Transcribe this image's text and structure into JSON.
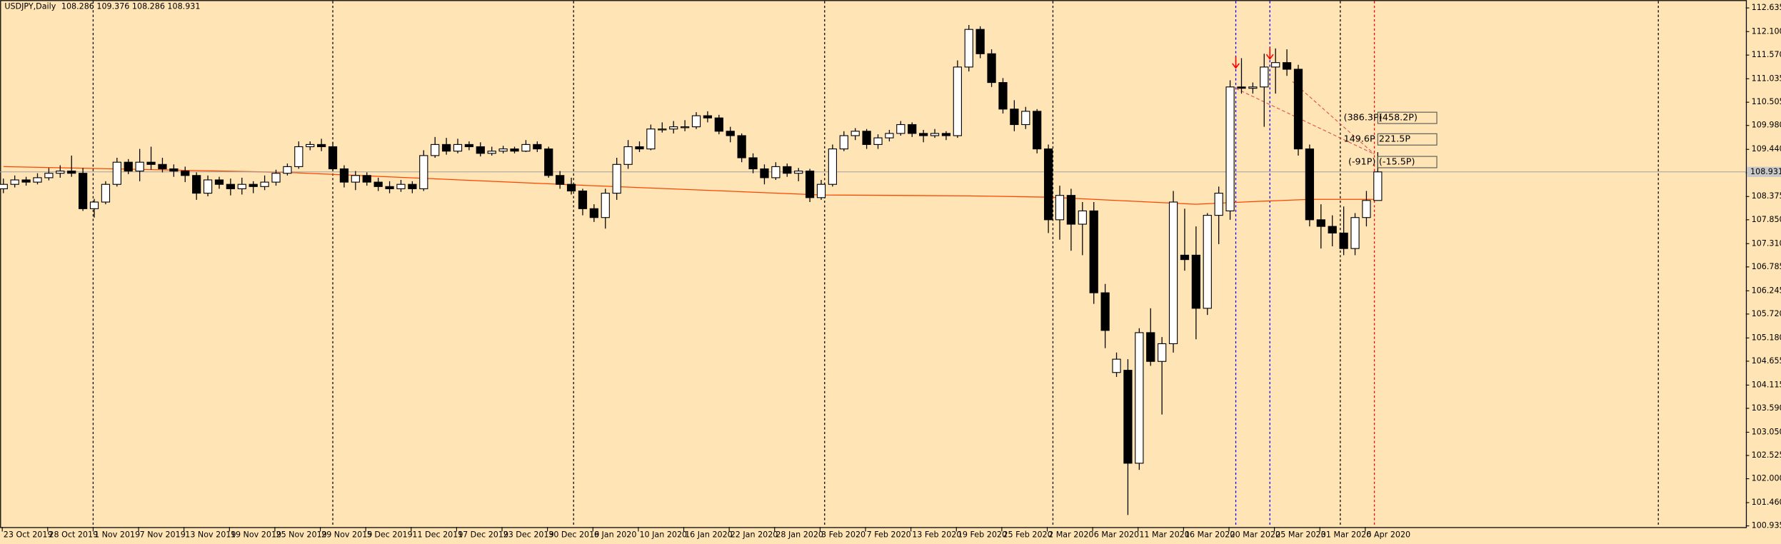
{
  "chart_data": {
    "type": "candlestick",
    "title": "USDJPY,Daily",
    "header_values": "108.286 109.376 108.286 108.931",
    "ylim": [
      100.935,
      112.635
    ],
    "yticks": [
      112.635,
      {
        "value": 112.1,
        "label": "112.100"
      },
      {
        "value": 111.57,
        "label": "111.570"
      },
      111.035,
      110.505,
      {
        "value": 109.98,
        "label": "109.980"
      },
      {
        "value": 109.44,
        "label": "109.440"
      },
      {
        "value": 108.91,
        "label": "108.910"
      },
      108.375,
      {
        "value": 107.85,
        "label": "107.850"
      },
      {
        "value": 107.31,
        "label": "107.310"
      },
      106.785,
      106.245,
      {
        "value": 105.72,
        "label": "105.720"
      },
      {
        "value": 105.18,
        "label": "105.180"
      },
      104.655,
      104.115,
      {
        "value": 103.59,
        "label": "103.590"
      },
      {
        "value": 103.05,
        "label": "103.050"
      },
      102.525,
      {
        "value": 102,
        "label": "102.000"
      },
      {
        "value": 101.46,
        "label": "101.460"
      },
      100.935
    ],
    "current_price": 108.931,
    "x_labels": [
      "23 Oct 2019",
      "28 Oct 2019",
      "1 Nov 2019",
      "7 Nov 2019",
      "13 Nov 2019",
      "19 Nov 2019",
      "25 Nov 2019",
      "29 Nov 2019",
      "5 Dec 2019",
      "11 Dec 2019",
      "17 Dec 2019",
      "23 Dec 2019",
      "30 Dec 2019",
      "6 Jan 2020",
      "10 Jan 2020",
      "16 Jan 2020",
      "22 Jan 2020",
      "28 Jan 2020",
      "3 Feb 2020",
      "7 Feb 2020",
      "13 Feb 2020",
      "19 Feb 2020",
      "25 Feb 2020",
      "2 Mar 2020",
      "6 Mar 2020",
      "11 Mar 2020",
      "16 Mar 2020",
      "20 Mar 2020",
      "25 Mar 2020",
      "31 Mar 2020",
      "6 Apr 2020"
    ],
    "candles": [
      [
        108.55,
        108.78,
        108.45,
        108.65
      ],
      [
        108.65,
        108.85,
        108.58,
        108.75
      ],
      [
        108.75,
        108.82,
        108.62,
        108.7
      ],
      [
        108.7,
        108.9,
        108.65,
        108.8
      ],
      [
        108.8,
        109.02,
        108.74,
        108.9
      ],
      [
        108.9,
        109.08,
        108.8,
        108.95
      ],
      [
        108.95,
        109.3,
        108.82,
        108.9
      ],
      [
        108.9,
        109.02,
        108.05,
        108.1
      ],
      [
        108.1,
        108.32,
        107.9,
        108.25
      ],
      [
        108.25,
        108.72,
        108.2,
        108.65
      ],
      [
        108.65,
        109.25,
        108.6,
        109.15
      ],
      [
        109.15,
        109.22,
        108.88,
        108.95
      ],
      [
        108.95,
        109.45,
        108.72,
        109.15
      ],
      [
        109.15,
        109.5,
        108.98,
        109.1
      ],
      [
        109.1,
        109.25,
        108.92,
        109.0
      ],
      [
        109.0,
        109.1,
        108.82,
        108.95
      ],
      [
        108.95,
        109.05,
        108.7,
        108.85
      ],
      [
        108.85,
        108.92,
        108.3,
        108.45
      ],
      [
        108.45,
        108.85,
        108.38,
        108.75
      ],
      [
        108.75,
        108.82,
        108.55,
        108.65
      ],
      [
        108.65,
        108.78,
        108.4,
        108.55
      ],
      [
        108.55,
        108.8,
        108.42,
        108.65
      ],
      [
        108.65,
        108.72,
        108.45,
        108.6
      ],
      [
        108.6,
        108.85,
        108.52,
        108.7
      ],
      [
        108.7,
        108.98,
        108.62,
        108.9
      ],
      [
        108.9,
        109.12,
        108.85,
        109.05
      ],
      [
        109.05,
        109.62,
        109.0,
        109.5
      ],
      [
        109.5,
        109.62,
        109.42,
        109.55
      ],
      [
        109.55,
        109.68,
        109.4,
        109.5
      ],
      [
        109.5,
        109.6,
        108.95,
        109.0
      ],
      [
        109.0,
        109.08,
        108.58,
        108.7
      ],
      [
        108.7,
        108.95,
        108.52,
        108.85
      ],
      [
        108.85,
        108.92,
        108.62,
        108.7
      ],
      [
        108.7,
        108.8,
        108.5,
        108.6
      ],
      [
        108.6,
        108.72,
        108.45,
        108.55
      ],
      [
        108.55,
        108.75,
        108.48,
        108.65
      ],
      [
        108.65,
        108.72,
        108.45,
        108.55
      ],
      [
        108.55,
        109.42,
        108.5,
        109.3
      ],
      [
        109.3,
        109.72,
        109.25,
        109.55
      ],
      [
        109.55,
        109.7,
        109.32,
        109.4
      ],
      [
        109.4,
        109.68,
        109.35,
        109.55
      ],
      [
        109.55,
        109.62,
        109.42,
        109.5
      ],
      [
        109.5,
        109.6,
        109.28,
        109.35
      ],
      [
        109.35,
        109.5,
        109.3,
        109.4
      ],
      [
        109.4,
        109.52,
        109.35,
        109.45
      ],
      [
        109.45,
        109.5,
        109.35,
        109.4
      ],
      [
        109.4,
        109.65,
        109.38,
        109.55
      ],
      [
        109.55,
        109.62,
        109.38,
        109.45
      ],
      [
        109.45,
        109.5,
        108.8,
        108.85
      ],
      [
        108.85,
        108.95,
        108.55,
        108.65
      ],
      [
        108.65,
        108.8,
        108.42,
        108.5
      ],
      [
        108.5,
        108.55,
        107.95,
        108.1
      ],
      [
        108.1,
        108.2,
        107.8,
        107.9
      ],
      [
        107.9,
        108.55,
        107.65,
        108.45
      ],
      [
        108.45,
        109.25,
        108.3,
        109.1
      ],
      [
        109.1,
        109.65,
        109.0,
        109.5
      ],
      [
        109.5,
        109.62,
        109.38,
        109.45
      ],
      [
        109.45,
        110.0,
        109.42,
        109.9
      ],
      [
        109.9,
        110.05,
        109.82,
        109.9
      ],
      [
        109.9,
        110.08,
        109.8,
        109.95
      ],
      [
        109.95,
        110.1,
        109.85,
        109.95
      ],
      [
        109.95,
        110.28,
        109.9,
        110.2
      ],
      [
        110.2,
        110.3,
        110.05,
        110.15
      ],
      [
        110.15,
        110.22,
        109.78,
        109.85
      ],
      [
        109.85,
        109.95,
        109.6,
        109.75
      ],
      [
        109.75,
        109.8,
        109.15,
        109.25
      ],
      [
        109.25,
        109.35,
        108.9,
        109.0
      ],
      [
        109.0,
        109.1,
        108.65,
        108.8
      ],
      [
        108.8,
        109.15,
        108.75,
        109.05
      ],
      [
        109.05,
        109.12,
        108.82,
        108.9
      ],
      [
        108.9,
        109.02,
        108.72,
        108.95
      ],
      [
        108.95,
        109.0,
        108.25,
        108.35
      ],
      [
        108.35,
        108.75,
        108.3,
        108.65
      ],
      [
        108.65,
        109.55,
        108.6,
        109.45
      ],
      [
        109.45,
        109.85,
        109.4,
        109.75
      ],
      [
        109.75,
        109.92,
        109.65,
        109.85
      ],
      [
        109.85,
        109.9,
        109.45,
        109.55
      ],
      [
        109.55,
        109.78,
        109.45,
        109.7
      ],
      [
        109.7,
        109.88,
        109.62,
        109.8
      ],
      [
        109.8,
        110.08,
        109.75,
        110.0
      ],
      [
        110.0,
        110.05,
        109.72,
        109.8
      ],
      [
        109.8,
        109.88,
        109.6,
        109.75
      ],
      [
        109.75,
        109.9,
        109.7,
        109.8
      ],
      [
        109.8,
        109.85,
        109.65,
        109.75
      ],
      [
        109.75,
        111.45,
        109.7,
        111.3
      ],
      [
        111.3,
        112.25,
        111.2,
        112.15
      ],
      [
        112.15,
        112.22,
        111.5,
        111.6
      ],
      [
        111.6,
        111.7,
        110.85,
        110.95
      ],
      [
        110.95,
        111.05,
        110.25,
        110.35
      ],
      [
        110.35,
        110.55,
        109.85,
        110.0
      ],
      [
        110.0,
        110.4,
        109.9,
        110.3
      ],
      [
        110.3,
        110.35,
        109.35,
        109.45
      ],
      [
        109.45,
        109.55,
        107.55,
        107.85
      ],
      [
        107.85,
        108.62,
        107.4,
        108.4
      ],
      [
        108.4,
        108.55,
        107.15,
        107.75
      ],
      [
        107.75,
        108.25,
        107.05,
        108.05
      ],
      [
        108.05,
        108.25,
        105.95,
        106.2
      ],
      [
        106.2,
        106.4,
        104.95,
        105.35
      ],
      [
        104.4,
        104.85,
        104.3,
        104.7
      ],
      [
        104.45,
        104.7,
        101.18,
        102.35
      ],
      [
        102.35,
        105.4,
        102.2,
        105.3
      ],
      [
        105.3,
        105.85,
        104.55,
        104.65
      ],
      [
        104.65,
        105.2,
        103.45,
        105.05
      ],
      [
        105.05,
        108.5,
        104.85,
        108.25
      ],
      [
        107.05,
        108.1,
        106.7,
        106.95
      ],
      [
        107.05,
        107.7,
        105.15,
        105.85
      ],
      [
        105.85,
        108.0,
        105.7,
        107.95
      ],
      [
        107.95,
        108.6,
        107.3,
        108.45
      ],
      [
        108.05,
        111.0,
        107.85,
        110.85
      ],
      [
        110.85,
        111.5,
        110.7,
        110.82
      ],
      [
        110.82,
        110.95,
        110.7,
        110.85
      ],
      [
        110.85,
        111.6,
        109.95,
        111.3
      ],
      [
        111.3,
        111.72,
        110.7,
        111.4
      ],
      [
        111.4,
        111.7,
        111.1,
        111.25
      ],
      [
        111.25,
        111.35,
        109.3,
        109.45
      ],
      [
        109.45,
        109.55,
        107.7,
        107.85
      ],
      [
        107.85,
        108.2,
        107.2,
        107.7
      ],
      [
        107.7,
        107.95,
        107.25,
        107.55
      ],
      [
        107.55,
        108.15,
        107.05,
        107.2
      ],
      [
        107.2,
        108.0,
        107.05,
        107.9
      ],
      [
        107.9,
        108.5,
        107.7,
        108.286
      ],
      [
        108.286,
        109.376,
        108.286,
        108.931
      ]
    ],
    "ma": {
      "color": "#ff4500",
      "x": [
        0,
        25,
        50,
        72,
        85,
        92,
        105,
        110,
        115,
        121
      ],
      "values": [
        109.05,
        108.92,
        108.64,
        108.41,
        108.39,
        108.36,
        108.2,
        108.26,
        108.31,
        108.31
      ]
    },
    "annotations": [
      {
        "text": "(386.3P)",
        "color": "#3a9a1e"
      },
      {
        "text": "(458.2P)",
        "color": "#3a9a1e"
      },
      {
        "text": "149.6P",
        "color": "#3a9a1e"
      },
      {
        "text": "221.5P",
        "color": "#3a9a1e"
      },
      {
        "text": "(-91P)",
        "color": "#c00000"
      },
      {
        "text": "(-15.5P)",
        "color": "#c00000"
      }
    ]
  }
}
